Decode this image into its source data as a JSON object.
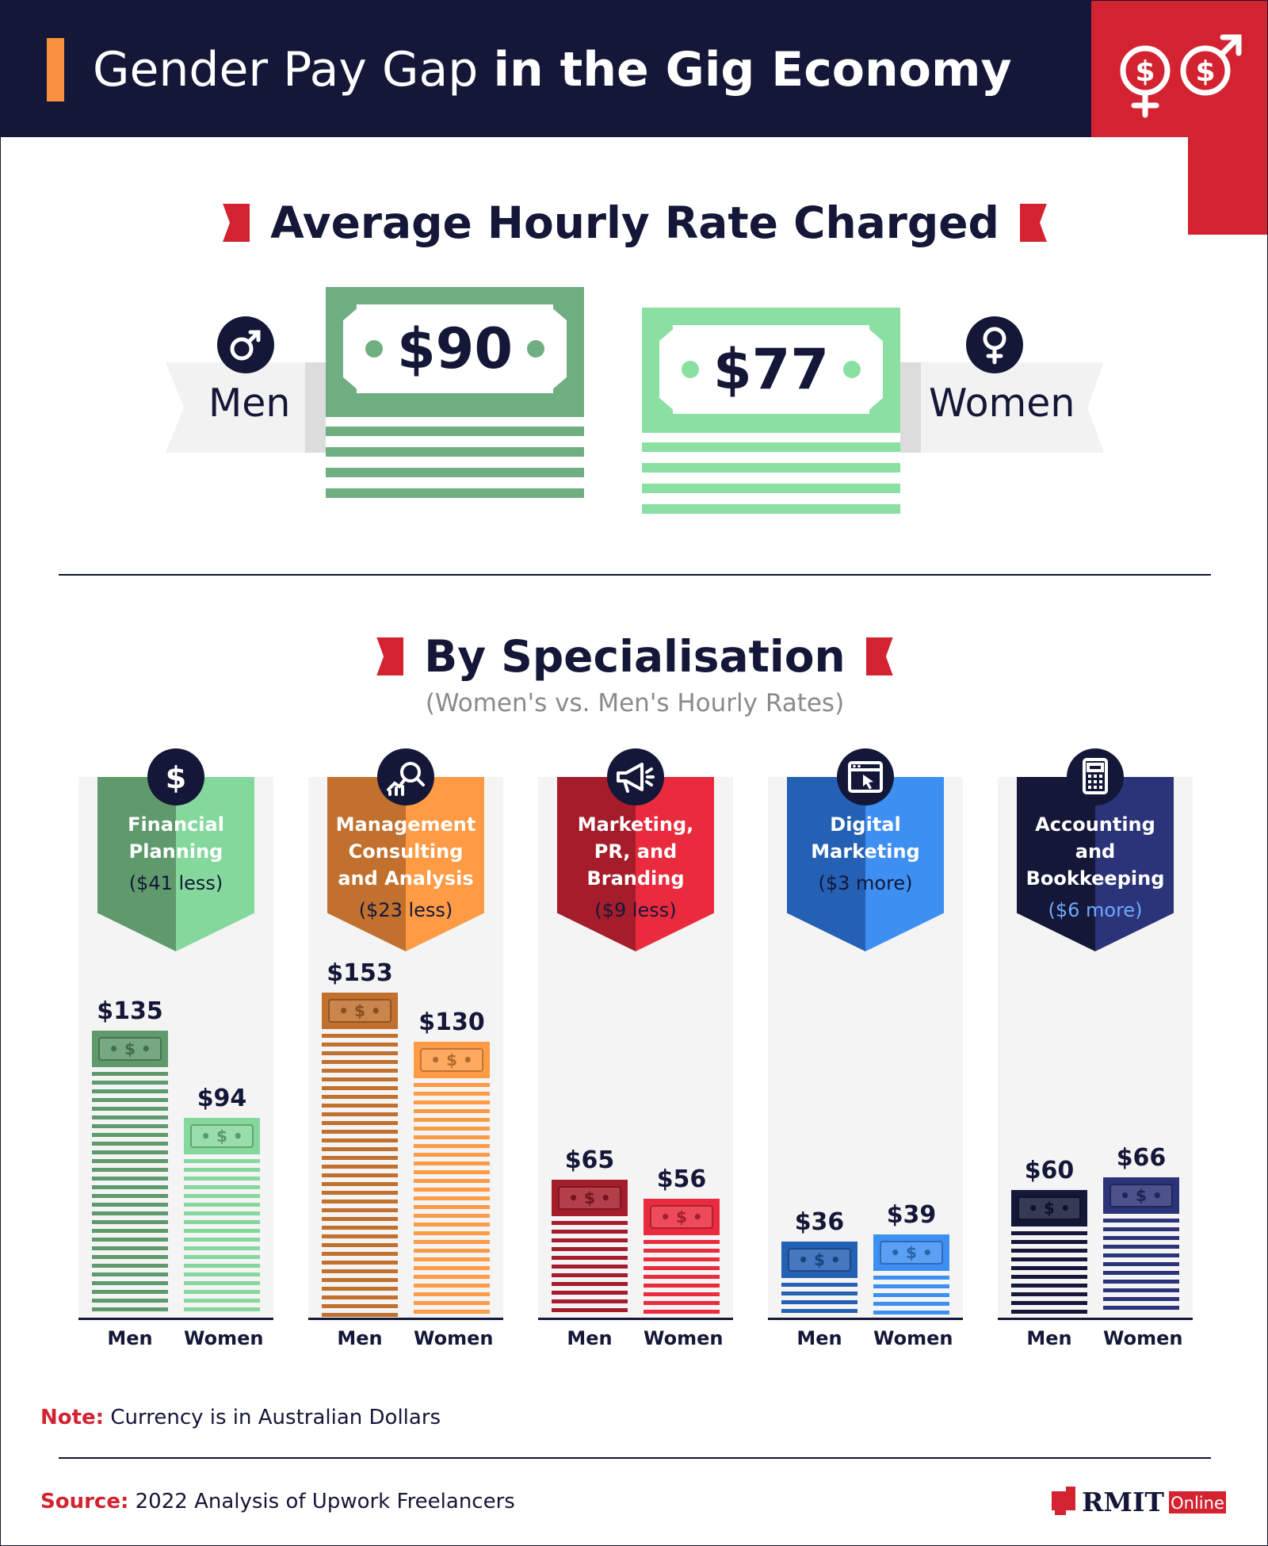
{
  "header": {
    "title_light": "Gender Pay Gap",
    "title_bold": "in the Gig Economy"
  },
  "average": {
    "heading": "Average Hourly Rate Charged",
    "men": {
      "label": "Men",
      "value": "$90",
      "amount": 90,
      "color": "#6fae80"
    },
    "women": {
      "label": "Women",
      "value": "$77",
      "amount": 77,
      "color": "#8ae0a2"
    }
  },
  "specialisation": {
    "heading": "By Specialisation",
    "subheading": "(Women's vs. Men's Hourly Rates)"
  },
  "chart_data": {
    "type": "bar",
    "title": "By Specialisation",
    "subtitle": "(Women's vs. Men's Hourly Rates)",
    "categories": [
      "Financial Planning",
      "Management Consulting and Analysis",
      "Marketing, PR, and Branding",
      "Digital Marketing",
      "Accounting and Bookkeeping"
    ],
    "series": [
      {
        "name": "Men",
        "values": [
          135,
          153,
          65,
          36,
          60
        ]
      },
      {
        "name": "Women",
        "values": [
          94,
          130,
          56,
          39,
          66
        ]
      }
    ],
    "ylim": [
      0,
      153
    ],
    "unit": "AUD per hour",
    "groups": [
      {
        "lines": [
          "Financial",
          "Planning"
        ],
        "diff": "($41 less)",
        "icon": "dollar-icon",
        "axis_men": "Men",
        "axis_women": "Women",
        "men_label": "$135",
        "women_label": "$94",
        "men_color": "#5e9a6b",
        "women_color": "#85d89c",
        "diff_color": "#141737"
      },
      {
        "lines": [
          "Management",
          "Consulting",
          "and Analysis"
        ],
        "diff": "($23 less)",
        "icon": "analytics-icon",
        "axis_men": "Men",
        "axis_women": "Women",
        "men_label": "$153",
        "women_label": "$130",
        "men_color": "#c1702e",
        "women_color": "#ff9a45",
        "diff_color": "#141737"
      },
      {
        "lines": [
          "Marketing,",
          "PR, and",
          "Branding"
        ],
        "diff": "($9 less)",
        "icon": "megaphone-icon",
        "axis_men": "Men",
        "axis_women": "Women",
        "men_label": "$65",
        "women_label": "$56",
        "men_color": "#a51d2b",
        "women_color": "#ea2b3e",
        "diff_color": "#141737"
      },
      {
        "lines": [
          "Digital",
          "Marketing"
        ],
        "diff": "($3 more)",
        "icon": "browser-cursor-icon",
        "axis_men": "Men",
        "axis_women": "Women",
        "men_label": "$36",
        "women_label": "$39",
        "men_color": "#2460b3",
        "women_color": "#3e8ff2",
        "diff_color": "#141737"
      },
      {
        "lines": [
          "Accounting",
          "and",
          "Bookkeeping"
        ],
        "diff": "($6 more)",
        "icon": "calculator-icon",
        "axis_men": "Men",
        "axis_women": "Women",
        "men_label": "$60",
        "women_label": "$66",
        "men_color": "#141737",
        "women_color": "#2b3478",
        "diff_color": "#6fa9ff"
      }
    ]
  },
  "footer": {
    "note_lead": "Note:",
    "note_text": "Currency is in Australian Dollars",
    "source_lead": "Source:",
    "source_text": "2022 Analysis of Upwork Freelancers",
    "logo_main": "RMIT",
    "logo_sub": "Online"
  },
  "colors": {
    "navy": "#141737",
    "red": "#d32330",
    "orange_accent": "#f7913d",
    "panel_bg": "#f4f4f4"
  }
}
